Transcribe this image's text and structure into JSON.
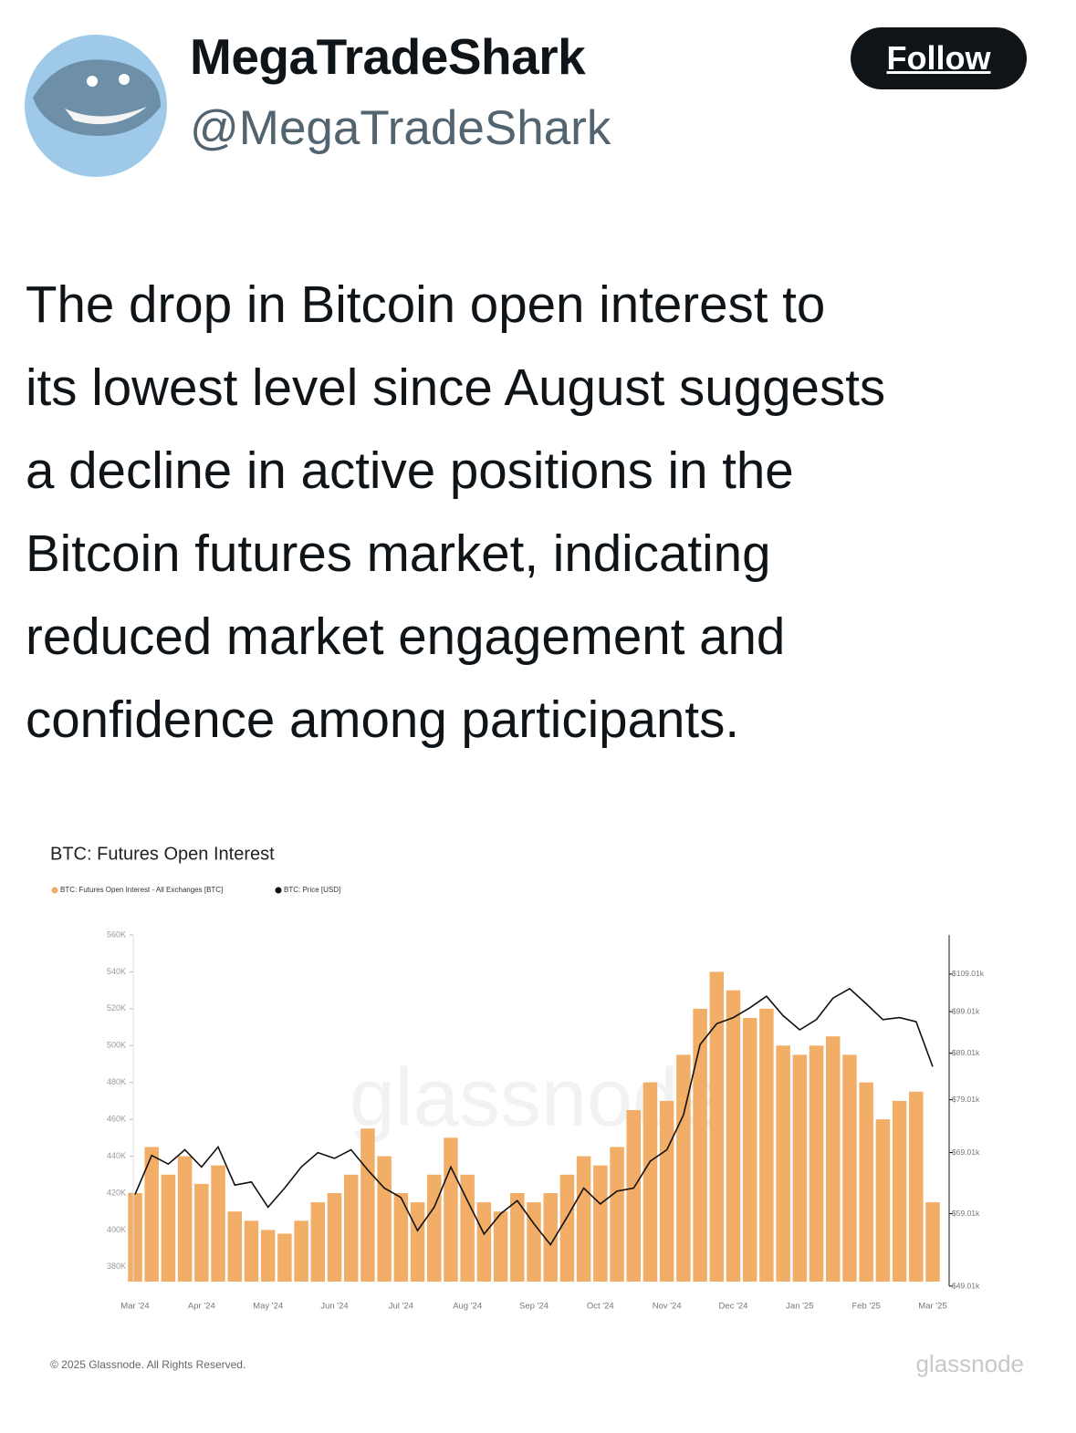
{
  "tweet": {
    "display_name": "MegaTradeShark",
    "handle": "@MegaTradeShark",
    "follow": "Follow",
    "text_lines": [
      "The drop in Bitcoin open interest to",
      "its lowest level since August suggests",
      "a decline in active positions in the",
      "Bitcoin futures market, indicating",
      "reduced market engagement and",
      "confidence among participants."
    ]
  },
  "chart_data": {
    "type": "bar-line",
    "title": "BTC: Futures Open Interest",
    "watermark": "glassnode",
    "copyright": "© 2025 Glassnode. All Rights Reserved.",
    "brand": "glassnode",
    "categories": [
      "Mar '24",
      null,
      null,
      null,
      "Apr '24",
      null,
      null,
      null,
      "May '24",
      null,
      null,
      null,
      "Jun '24",
      null,
      null,
      null,
      "Jul '24",
      null,
      null,
      null,
      "Aug '24",
      null,
      null,
      null,
      "Sep '24",
      null,
      null,
      null,
      "Oct '24",
      null,
      null,
      null,
      "Nov '24",
      null,
      null,
      null,
      "Dec '24",
      null,
      null,
      null,
      "Jan '25",
      null,
      null,
      null,
      "Feb '25",
      null,
      null,
      null,
      "Mar '25"
    ],
    "series": [
      {
        "name": "BTC: Futures Open Interest - All Exchanges [BTC]",
        "color": "#f2ad66",
        "values": [
          420000,
          445000,
          430000,
          440000,
          425000,
          435000,
          410000,
          405000,
          400000,
          398000,
          405000,
          415000,
          420000,
          430000,
          455000,
          440000,
          420000,
          415000,
          430000,
          450000,
          430000,
          415000,
          410000,
          420000,
          415000,
          420000,
          430000,
          440000,
          435000,
          445000,
          465000,
          480000,
          470000,
          495000,
          520000,
          540000,
          530000,
          515000,
          520000,
          500000,
          495000,
          500000,
          505000,
          495000,
          480000,
          460000,
          470000,
          475000,
          415000
        ]
      },
      {
        "name": "BTC: Price [USD]",
        "color": "#111111",
        "axis": "y2",
        "values": [
          62000,
          68500,
          67000,
          69500,
          66500,
          70000,
          63500,
          64000,
          60000,
          63000,
          66500,
          69000,
          68000,
          69500,
          66000,
          63000,
          61500,
          56500,
          60000,
          66500,
          61000,
          56000,
          59000,
          61000,
          57500,
          54500,
          58500,
          63000,
          60500,
          62500,
          63000,
          67500,
          69500,
          76000,
          91000,
          96000,
          97500,
          100000,
          103000,
          98000,
          94500,
          97000,
          102500,
          105000,
          101000,
          97000,
          97500,
          96500,
          86000
        ]
      }
    ],
    "ylim": [
      372000,
      560000
    ],
    "yticks": [
      {
        "value": 380000,
        "label": "380K"
      },
      {
        "value": 400000,
        "label": "400K"
      },
      {
        "value": 420000,
        "label": "420K"
      },
      {
        "value": 440000,
        "label": "440K"
      },
      {
        "value": 460000,
        "label": "460K"
      },
      {
        "value": 480000,
        "label": "480K"
      },
      {
        "value": 500000,
        "label": "500K"
      },
      {
        "value": 520000,
        "label": "520K"
      },
      {
        "value": 540000,
        "label": "540K"
      },
      {
        "value": 560000,
        "label": "560K"
      }
    ],
    "y2lim": [
      49010,
      120500
    ],
    "y2log": true,
    "y2ticks": [
      {
        "value": 49010,
        "label": "$49.01k"
      },
      {
        "value": 59010,
        "label": "$59.01k"
      },
      {
        "value": 69010,
        "label": "$69.01k"
      },
      {
        "value": 79010,
        "label": "$79.01k"
      },
      {
        "value": 89010,
        "label": "$89.01k"
      },
      {
        "value": 99010,
        "label": "$99.01k"
      },
      {
        "value": 109010,
        "label": "$109.01k"
      }
    ],
    "grid": false,
    "legend": "top-left"
  }
}
